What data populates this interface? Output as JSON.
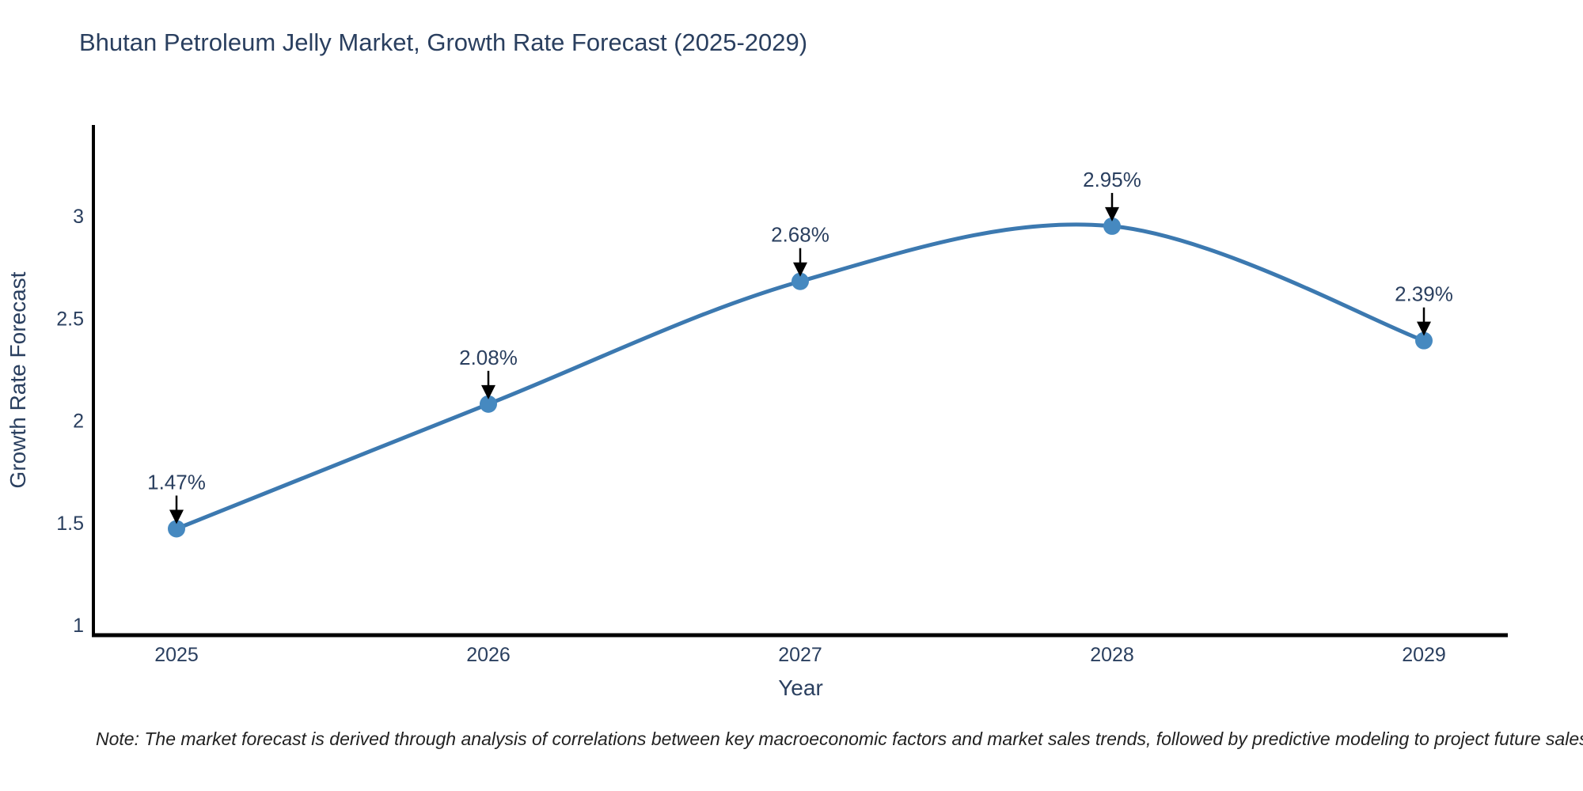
{
  "title": "Bhutan Petroleum Jelly Market, Growth Rate Forecast (2025-2029)",
  "note": "Note: The market forecast is derived through analysis of correlations between key macroeconomic factors and market sales trends, followed by predictive modeling to project future sales",
  "chart_data": {
    "type": "line",
    "title": "Bhutan Petroleum Jelly Market, Growth Rate Forecast (2025-2029)",
    "categories": [
      "2025",
      "2026",
      "2027",
      "2028",
      "2029"
    ],
    "values": [
      1.47,
      2.08,
      2.68,
      2.95,
      2.39
    ],
    "point_labels": [
      "1.47%",
      "2.08%",
      "2.68%",
      "2.95%",
      "2.39%"
    ],
    "xlabel": "Year",
    "ylabel": "Growth Rate Forecast",
    "yticks": [
      1,
      1.5,
      2,
      2.5,
      3
    ],
    "ylim": [
      0.95,
      3.44
    ],
    "line_shape": "spline",
    "grid": false,
    "legend": "none",
    "colors": {
      "line": "#3c79b0",
      "marker": "#4689c0",
      "axis": "#000000",
      "text": "#2a3f5f",
      "annotation_arrow": "#000000"
    }
  }
}
